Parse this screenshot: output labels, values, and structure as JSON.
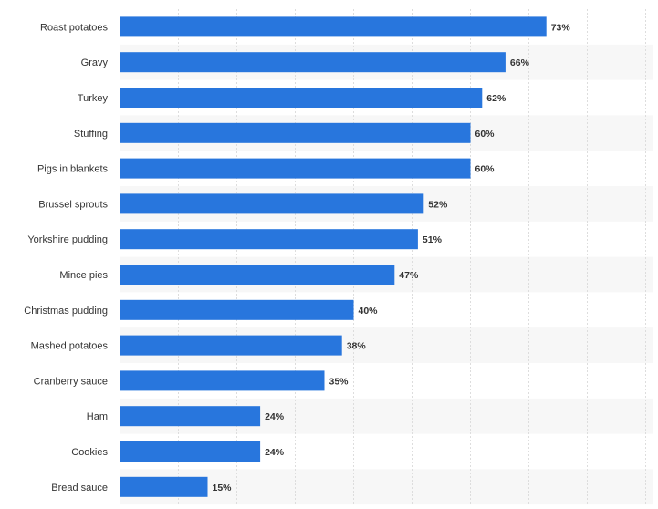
{
  "chart_data": {
    "type": "bar",
    "orientation": "horizontal",
    "categories": [
      "Roast potatoes",
      "Gravy",
      "Turkey",
      "Stuffing",
      "Pigs in blankets",
      "Brussel sprouts",
      "Yorkshire pudding",
      "Mince pies",
      "Christmas pudding",
      "Mashed potatoes",
      "Cranberry sauce",
      "Ham",
      "Cookies",
      "Bread sauce"
    ],
    "values": [
      73,
      66,
      62,
      60,
      60,
      52,
      51,
      47,
      40,
      38,
      35,
      24,
      24,
      15
    ],
    "value_labels": [
      "73%",
      "66%",
      "62%",
      "60%",
      "60%",
      "52%",
      "51%",
      "47%",
      "40%",
      "38%",
      "35%",
      "24%",
      "24%",
      "15%"
    ],
    "xlim": [
      0,
      90
    ],
    "grid": true,
    "bar_color": "#2876dd",
    "band_color": "#f7f7f7"
  }
}
